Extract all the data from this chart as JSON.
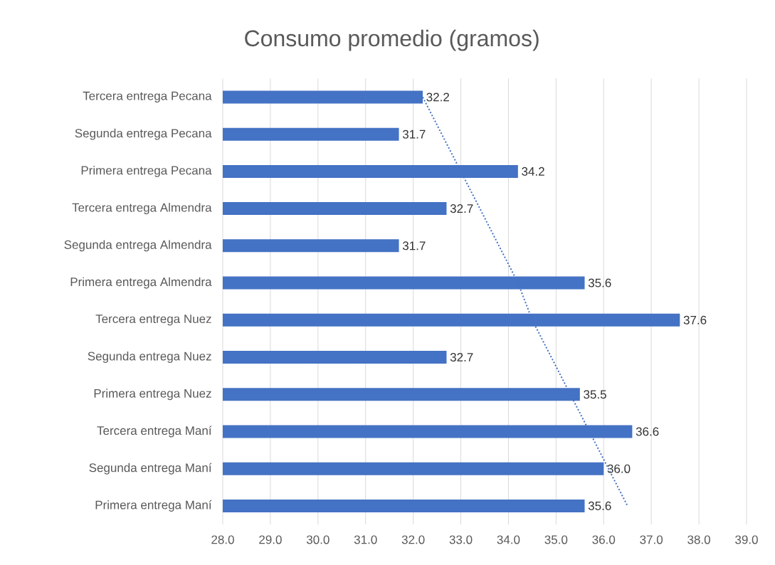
{
  "chart_data": {
    "type": "bar",
    "orientation": "horizontal",
    "title": "Consumo promedio (gramos)",
    "categories": [
      "Tercera entrega Pecana",
      "Segunda entrega Pecana",
      "Primera entrega Pecana",
      "Tercera entrega Almendra",
      "Segunda entrega Almendra",
      "Primera entrega Almendra",
      "Tercera entrega Nuez",
      "Segunda entrega Nuez",
      "Primera entrega Nuez",
      "Tercera entrega Maní",
      "Segunda entrega Maní",
      "Primera entrega Maní"
    ],
    "series": [
      {
        "color": "#4472c4",
        "values": [
          32.2,
          31.7,
          34.2,
          32.7,
          31.7,
          35.6,
          37.6,
          32.7,
          35.5,
          36.6,
          36.0,
          35.6
        ],
        "value_labels": [
          "32.2",
          "31.7",
          "34.2",
          "32.7",
          "31.7",
          "35.6",
          "37.6",
          "32.7",
          "35.5",
          "36.6",
          "36.0",
          "35.6"
        ]
      },
      {
        "type": "line",
        "color": "#4472c4",
        "line_style": "dotted",
        "values": [
          32.2,
          32.6,
          33.0,
          33.4,
          33.8,
          34.2,
          34.5,
          34.9,
          35.3,
          35.7,
          36.1,
          36.5
        ]
      }
    ],
    "xlim": [
      28,
      39
    ],
    "xticks": [
      {
        "value": 28,
        "label": "28.0"
      },
      {
        "value": 29,
        "label": "29.0"
      },
      {
        "value": 30,
        "label": "30.0"
      },
      {
        "value": 31,
        "label": "31.0"
      },
      {
        "value": 32,
        "label": "32.0"
      },
      {
        "value": 33,
        "label": "33.0"
      },
      {
        "value": 34,
        "label": "34.0"
      },
      {
        "value": 35,
        "label": "35.0"
      },
      {
        "value": 36,
        "label": "36.0"
      },
      {
        "value": 37,
        "label": "37.0"
      },
      {
        "value": 38,
        "label": "38.0"
      },
      {
        "value": 39,
        "label": "39.0"
      }
    ],
    "grid": "x"
  }
}
